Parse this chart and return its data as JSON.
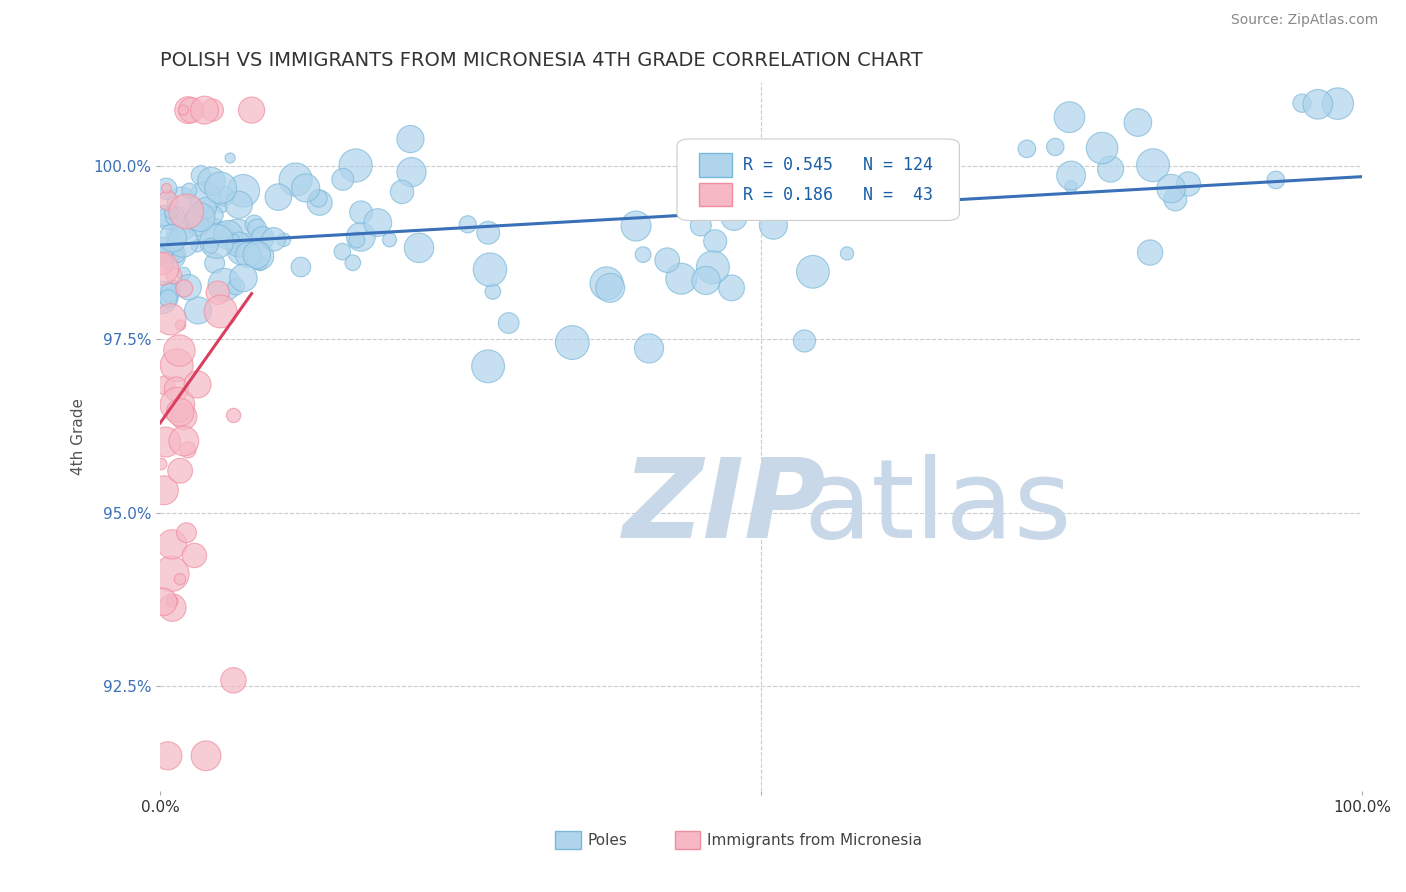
{
  "title": "POLISH VS IMMIGRANTS FROM MICRONESIA 4TH GRADE CORRELATION CHART",
  "source_text": "Source: ZipAtlas.com",
  "ylabel": "4th Grade",
  "ylabel_tick_vals": [
    92.5,
    95.0,
    97.5,
    100.0
  ],
  "xlim": [
    0.0,
    100.0
  ],
  "ylim": [
    91.0,
    101.2
  ],
  "legend_blue_R": "R = 0.545",
  "legend_blue_N": "N = 124",
  "legend_pink_R": "R = 0.186",
  "legend_pink_N": "N =  43",
  "blue_color": "#7ab8d9",
  "blue_face_color": "#afd4ec",
  "pink_color": "#f08ca0",
  "pink_face_color": "#f5b8c4",
  "trend_blue_color": "#3a70b8",
  "trend_pink_color": "#d94060",
  "watermark_zip": "ZIP",
  "watermark_atlas": "atlas",
  "watermark_color": "#c8d8e8",
  "blue_n": 124,
  "pink_n": 43,
  "background_color": "#ffffff",
  "grid_color": "#cccccc"
}
